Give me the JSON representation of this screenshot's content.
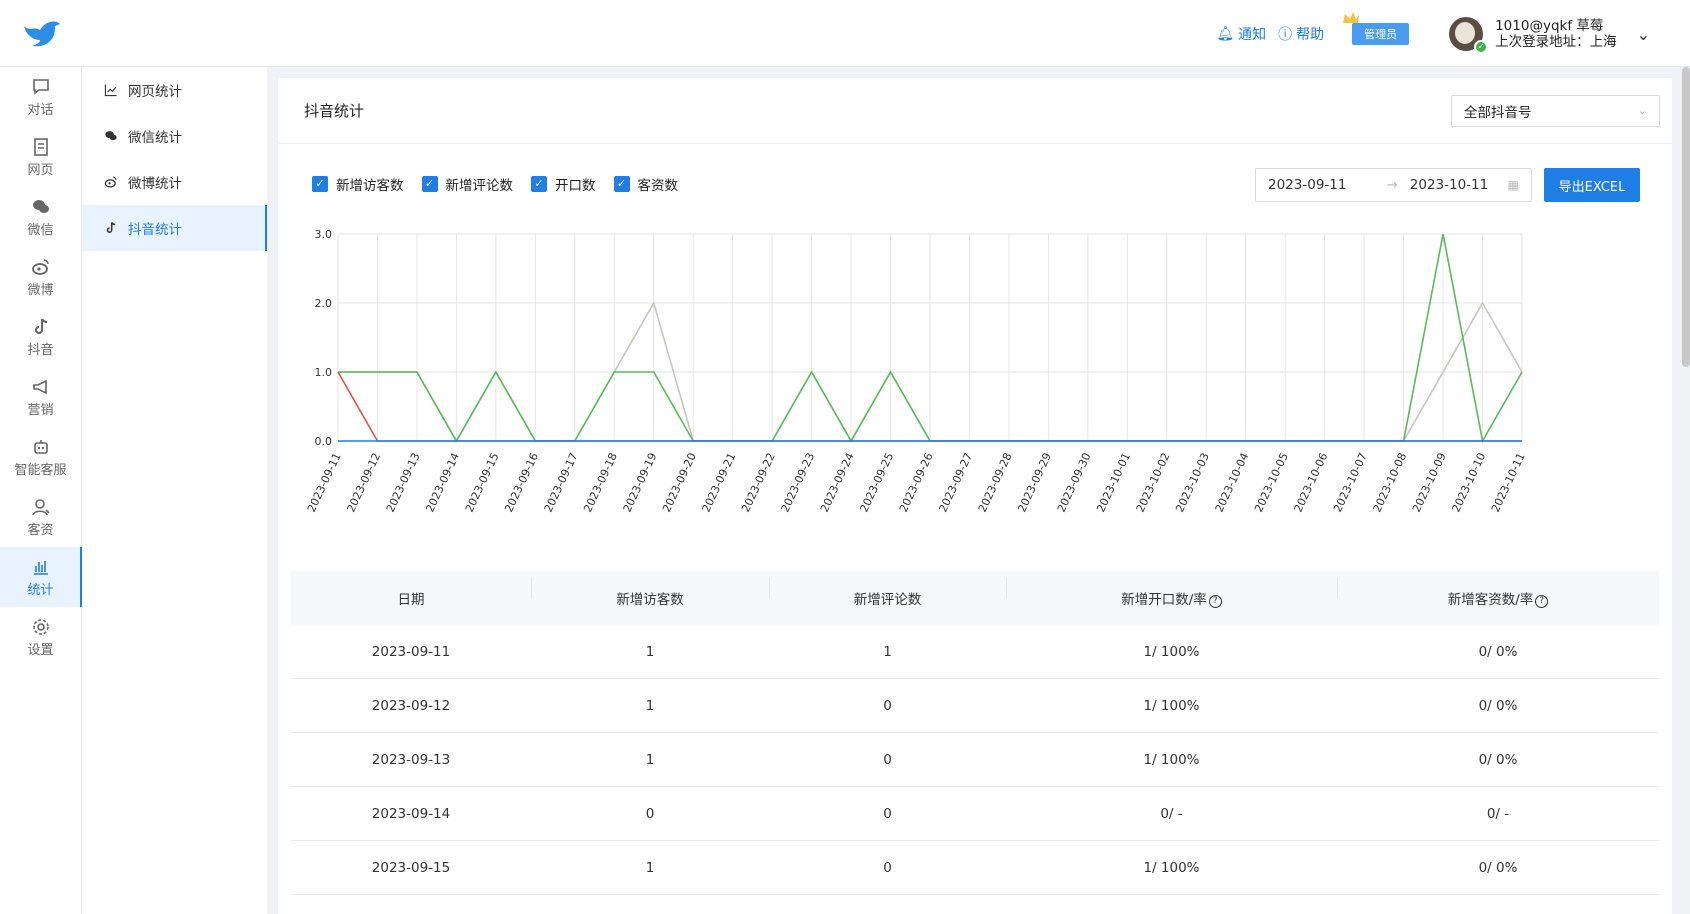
{
  "header": {
    "notify_label": "通知",
    "help_label": "帮助",
    "admin_badge": "管理员",
    "user_name": "1010@yqkf 草莓",
    "last_login": "上次登录地址：上海"
  },
  "leftnav": [
    {
      "label": "对话",
      "icon": "chat-icon"
    },
    {
      "label": "网页",
      "icon": "webpage-icon"
    },
    {
      "label": "微信",
      "icon": "wechat-icon"
    },
    {
      "label": "微博",
      "icon": "weibo-icon"
    },
    {
      "label": "抖音",
      "icon": "douyin-icon"
    },
    {
      "label": "营销",
      "icon": "megaphone-icon"
    },
    {
      "label": "智能客服",
      "icon": "robot-icon"
    },
    {
      "label": "客资",
      "icon": "contacts-icon"
    },
    {
      "label": "统计",
      "icon": "stats-icon",
      "active": true
    },
    {
      "label": "设置",
      "icon": "gear-icon"
    }
  ],
  "subnav": [
    {
      "label": "网页统计",
      "icon": "line-chart-icon"
    },
    {
      "label": "微信统计",
      "icon": "wechat-icon"
    },
    {
      "label": "微博统计",
      "icon": "weibo-icon"
    },
    {
      "label": "抖音统计",
      "icon": "douyin-icon",
      "active": true
    }
  ],
  "panel": {
    "title": "抖音统计",
    "account_select": "全部抖音号",
    "checkboxes": [
      "新增访客数",
      "新增评论数",
      "开口数",
      "客资数"
    ],
    "date_start": "2023-09-11",
    "date_end": "2023-10-11",
    "export_label": "导出EXCEL"
  },
  "chart_data": {
    "type": "line",
    "x": [
      "2023-09-11",
      "2023-09-12",
      "2023-09-13",
      "2023-09-14",
      "2023-09-15",
      "2023-09-16",
      "2023-09-17",
      "2023-09-18",
      "2023-09-19",
      "2023-09-20",
      "2023-09-21",
      "2023-09-22",
      "2023-09-23",
      "2023-09-24",
      "2023-09-25",
      "2023-09-26",
      "2023-09-27",
      "2023-09-28",
      "2023-09-29",
      "2023-09-30",
      "2023-10-01",
      "2023-10-02",
      "2023-10-03",
      "2023-10-04",
      "2023-10-05",
      "2023-10-06",
      "2023-10-07",
      "2023-10-08",
      "2023-10-09",
      "2023-10-10",
      "2023-10-11"
    ],
    "y_ticks": [
      "0.0",
      "1.0",
      "2.0",
      "3.0"
    ],
    "ylim": [
      0,
      3
    ],
    "grid": true,
    "series": [
      {
        "color": "#1f7fe6",
        "values": [
          0,
          0,
          0,
          0,
          0,
          0,
          0,
          0,
          0,
          0,
          0,
          0,
          0,
          0,
          0,
          0,
          0,
          0,
          0,
          0,
          0,
          0,
          0,
          0,
          0,
          0,
          0,
          0,
          0,
          0,
          0
        ]
      },
      {
        "color": "#d9534f",
        "values": [
          1,
          0,
          0,
          0,
          0,
          0,
          0,
          0,
          0,
          0,
          0,
          0,
          0,
          0,
          0,
          0,
          0,
          0,
          0,
          0,
          0,
          0,
          0,
          0,
          0,
          0,
          0,
          0,
          0,
          0,
          0
        ]
      },
      {
        "color": "#5cb85c",
        "values": [
          1,
          1,
          1,
          0,
          1,
          0,
          0,
          1,
          1,
          0,
          0,
          0,
          1,
          0,
          1,
          0,
          0,
          0,
          0,
          0,
          0,
          0,
          0,
          0,
          0,
          0,
          0,
          0,
          3,
          0,
          1
        ]
      },
      {
        "color": "#c8c5bf",
        "values": [
          1,
          1,
          1,
          0,
          1,
          0,
          0,
          1,
          2,
          0,
          0,
          0,
          1,
          0,
          1,
          0,
          0,
          0,
          0,
          0,
          0,
          0,
          0,
          0,
          0,
          0,
          0,
          0,
          1,
          2,
          1
        ]
      }
    ]
  },
  "table": {
    "headers": [
      "日期",
      "新增访客数",
      "新增评论数",
      "新增开口数/率",
      "新增客资数/率"
    ],
    "rows": [
      [
        "2023-09-11",
        "1",
        "1",
        "1/ 100%",
        "0/ 0%"
      ],
      [
        "2023-09-12",
        "1",
        "0",
        "1/ 100%",
        "0/ 0%"
      ],
      [
        "2023-09-13",
        "1",
        "0",
        "1/ 100%",
        "0/ 0%"
      ],
      [
        "2023-09-14",
        "0",
        "0",
        "0/ -",
        "0/ -"
      ],
      [
        "2023-09-15",
        "1",
        "0",
        "1/ 100%",
        "0/ 0%"
      ]
    ]
  }
}
